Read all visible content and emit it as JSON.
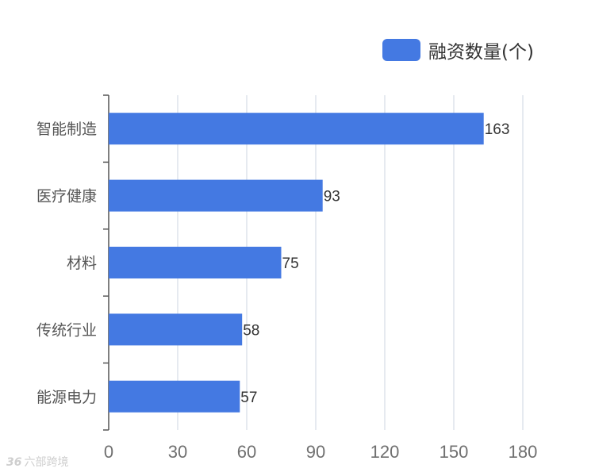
{
  "chart_data": {
    "type": "bar",
    "orientation": "horizontal",
    "categories": [
      "智能制造",
      "医疗健康",
      "材料",
      "传统行业",
      "能源电力"
    ],
    "series": [
      {
        "name": "融资数量(个)",
        "values": [
          163,
          93,
          75,
          58,
          57
        ],
        "color": "#4479e2"
      }
    ],
    "data_labels": [
      "163",
      "93",
      "75",
      "58",
      "57"
    ],
    "xlim": [
      0,
      180
    ],
    "xticks": [
      0,
      30,
      60,
      90,
      120,
      150,
      180
    ],
    "grid": "vertical",
    "legend_position": "top-right"
  },
  "watermark": {
    "logo": "36",
    "text": "六部跨境"
  }
}
